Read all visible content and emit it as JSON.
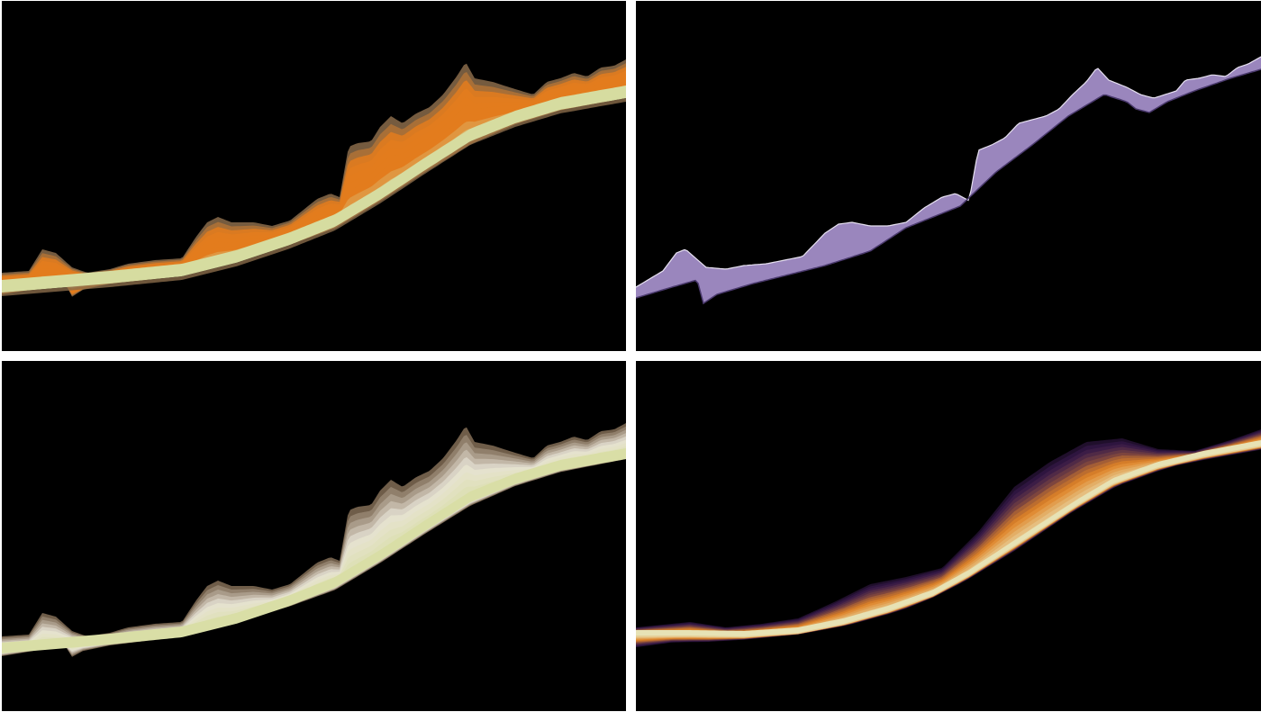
{
  "panels": [
    {
      "id": "top-left",
      "palette": [
        "#d6dca0",
        "#e37d1d",
        "#8a6b4a"
      ],
      "style": "fan-with-lower-shadow"
    },
    {
      "id": "top-right",
      "palette": [
        "#9a86bd",
        "#e6e0f0",
        "#4b3a6e"
      ],
      "style": "single-band"
    },
    {
      "id": "bottom-left",
      "palette": [
        "#d9dea6",
        "#e8e4d8",
        "#7a6650"
      ],
      "style": "fan-pale"
    },
    {
      "id": "bottom-right",
      "palette": [
        "#e7e2b5",
        "#e08427",
        "#3a1c50"
      ],
      "style": "fan-smooth-dark"
    }
  ]
}
